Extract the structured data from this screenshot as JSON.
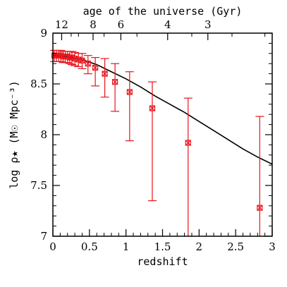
{
  "chart_data": {
    "type": "scatter",
    "xlabel": "redshift",
    "ylabel": "log ρ★ (M☉ Mpc⁻³)",
    "top_axis_label": "age of the universe (Gyr)",
    "xlim": [
      0,
      3
    ],
    "ylim": [
      7,
      9
    ],
    "x_ticks": [
      0,
      0.5,
      1,
      1.5,
      2,
      2.5,
      3
    ],
    "x_tick_labels": [
      "0",
      "0.5",
      "1",
      "1.5",
      "2",
      "2.5",
      "3"
    ],
    "y_ticks": [
      7,
      7.5,
      8,
      8.5,
      9
    ],
    "y_tick_labels": [
      "7",
      "7.5",
      "8",
      "8.5",
      "9"
    ],
    "top_ticks": [
      {
        "label": "12",
        "z": 0.12
      },
      {
        "label": "8",
        "z": 0.55
      },
      {
        "label": "6",
        "z": 0.93
      },
      {
        "label": "4",
        "z": 1.57
      },
      {
        "label": "3",
        "z": 2.12
      }
    ],
    "grid": false,
    "colors": {
      "points": "#e8141b",
      "model": "#000000",
      "axes": "#000000"
    },
    "series": [
      {
        "kind": "points_with_errorbars",
        "marker": "cross-square",
        "points": [
          {
            "x": 0.02,
            "y": 8.78,
            "lo": 8.72,
            "hi": 8.83
          },
          {
            "x": 0.05,
            "y": 8.78,
            "lo": 8.72,
            "hi": 8.83
          },
          {
            "x": 0.08,
            "y": 8.78,
            "lo": 8.72,
            "hi": 8.83
          },
          {
            "x": 0.11,
            "y": 8.78,
            "lo": 8.72,
            "hi": 8.83
          },
          {
            "x": 0.14,
            "y": 8.77,
            "lo": 8.71,
            "hi": 8.82
          },
          {
            "x": 0.17,
            "y": 8.77,
            "lo": 8.71,
            "hi": 8.82
          },
          {
            "x": 0.2,
            "y": 8.77,
            "lo": 8.71,
            "hi": 8.82
          },
          {
            "x": 0.23,
            "y": 8.76,
            "lo": 8.7,
            "hi": 8.82
          },
          {
            "x": 0.26,
            "y": 8.76,
            "lo": 8.69,
            "hi": 8.82
          },
          {
            "x": 0.3,
            "y": 8.75,
            "lo": 8.68,
            "hi": 8.81
          },
          {
            "x": 0.35,
            "y": 8.74,
            "lo": 8.67,
            "hi": 8.8
          },
          {
            "x": 0.4,
            "y": 8.73,
            "lo": 8.65,
            "hi": 8.8
          },
          {
            "x": 0.48,
            "y": 8.7,
            "lo": 8.6,
            "hi": 8.78
          },
          {
            "x": 0.58,
            "y": 8.66,
            "lo": 8.48,
            "hi": 8.76
          },
          {
            "x": 0.71,
            "y": 8.6,
            "lo": 8.37,
            "hi": 8.75
          },
          {
            "x": 0.85,
            "y": 8.52,
            "lo": 8.23,
            "hi": 8.7
          },
          {
            "x": 1.05,
            "y": 8.42,
            "lo": 7.94,
            "hi": 8.62
          },
          {
            "x": 1.36,
            "y": 8.26,
            "lo": 7.35,
            "hi": 8.52
          },
          {
            "x": 1.85,
            "y": 7.92,
            "lo": 7.0,
            "hi": 8.36
          },
          {
            "x": 2.83,
            "y": 7.28,
            "lo": 7.0,
            "hi": 8.18
          }
        ]
      },
      {
        "kind": "line",
        "x": [
          0,
          0.2,
          0.4,
          0.6,
          0.8,
          1.0,
          1.2,
          1.4,
          1.6,
          1.8,
          2.0,
          2.2,
          2.4,
          2.6,
          2.8,
          3.0
        ],
        "y": [
          8.78,
          8.77,
          8.74,
          8.69,
          8.62,
          8.55,
          8.47,
          8.38,
          8.3,
          8.22,
          8.13,
          8.04,
          7.95,
          7.86,
          7.78,
          7.71
        ]
      }
    ]
  }
}
